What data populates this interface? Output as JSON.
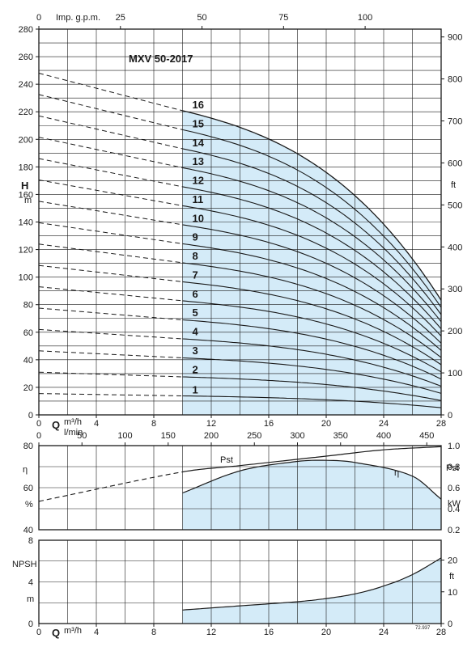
{
  "colors": {
    "fill": "#d4ebf8",
    "curve": "#1a1a1a",
    "grid": "#1a1a1a"
  },
  "labels": {
    "title": "MXV 50-2017",
    "top_axis": "Imp. g.p.m.",
    "H": "H",
    "H_unit": "m",
    "ft": "ft",
    "Q": "Q",
    "Q_unit": "m³/h",
    "lmin": "l/min",
    "eta": "η",
    "pct": "%",
    "Pst": "Pst",
    "kW": "kW",
    "NPSH": "NPSH",
    "npsh_m": "m",
    "npsh_ft": "ft",
    "code": "72.937"
  },
  "chart_data": [
    {
      "type": "line",
      "title": "MXV 50-2017",
      "xlabel": "Q m³/h",
      "ylabel": "H m",
      "xlim": [
        0,
        28
      ],
      "ylim": [
        0,
        280
      ],
      "x_ticks": [
        "0",
        "4",
        "8",
        "12",
        "16",
        "20",
        "24",
        "28"
      ],
      "y_ticks": [
        "0",
        "20",
        "40",
        "60",
        "80",
        "100",
        "120",
        "140",
        "160",
        "180",
        "200",
        "220",
        "240",
        "260",
        "280"
      ],
      "top_axis": {
        "label": "Imp. g.p.m.",
        "ticks": [
          "0",
          "25",
          "50",
          "75",
          "100"
        ],
        "values": [
          0,
          25,
          50,
          75,
          100
        ]
      },
      "right_axis": {
        "label": "ft",
        "ticks": [
          "0",
          "100",
          "200",
          "300",
          "400",
          "500",
          "600",
          "700",
          "800",
          "900"
        ]
      },
      "operating_range": [
        10,
        28
      ],
      "note": "dashed segments for Q < 10 m³/h",
      "stages": [
        "1",
        "2",
        "3",
        "4",
        "5",
        "6",
        "7",
        "8",
        "9",
        "10",
        "11",
        "12",
        "13",
        "14",
        "15",
        "16"
      ],
      "series_points": {
        "x": [
          0,
          10,
          20,
          28
        ],
        "per_stage_head_m": [
          15.5,
          13.8,
          11.0,
          5.2
        ]
      },
      "series": [
        {
          "name": "1",
          "points": [
            [
              0,
              15.5
            ],
            [
              10,
              13.8
            ],
            [
              20,
              11.0
            ],
            [
              28,
              5.2
            ]
          ]
        },
        {
          "name": "2",
          "points": [
            [
              0,
              31.0
            ],
            [
              10,
              27.6
            ],
            [
              20,
              22.0
            ],
            [
              28,
              10.4
            ]
          ]
        },
        {
          "name": "3",
          "points": [
            [
              0,
              46.5
            ],
            [
              10,
              41.4
            ],
            [
              20,
              33.0
            ],
            [
              28,
              15.6
            ]
          ]
        },
        {
          "name": "4",
          "points": [
            [
              0,
              62.0
            ],
            [
              10,
              55.2
            ],
            [
              20,
              44.0
            ],
            [
              28,
              20.8
            ]
          ]
        },
        {
          "name": "5",
          "points": [
            [
              0,
              77.5
            ],
            [
              10,
              69.0
            ],
            [
              20,
              55.0
            ],
            [
              28,
              26.0
            ]
          ]
        },
        {
          "name": "6",
          "points": [
            [
              0,
              93.0
            ],
            [
              10,
              82.8
            ],
            [
              20,
              66.0
            ],
            [
              28,
              31.2
            ]
          ]
        },
        {
          "name": "7",
          "points": [
            [
              0,
              108.5
            ],
            [
              10,
              96.6
            ],
            [
              20,
              77.0
            ],
            [
              28,
              36.4
            ]
          ]
        },
        {
          "name": "8",
          "points": [
            [
              0,
              124.0
            ],
            [
              10,
              110.4
            ],
            [
              20,
              88.0
            ],
            [
              28,
              41.6
            ]
          ]
        },
        {
          "name": "9",
          "points": [
            [
              0,
              139.5
            ],
            [
              10,
              124.2
            ],
            [
              20,
              99.0
            ],
            [
              28,
              46.8
            ]
          ]
        },
        {
          "name": "10",
          "points": [
            [
              0,
              155.0
            ],
            [
              10,
              138.0
            ],
            [
              20,
              110.0
            ],
            [
              28,
              52.0
            ]
          ]
        },
        {
          "name": "11",
          "points": [
            [
              0,
              170.5
            ],
            [
              10,
              151.8
            ],
            [
              20,
              121.0
            ],
            [
              28,
              57.2
            ]
          ]
        },
        {
          "name": "12",
          "points": [
            [
              0,
              186.0
            ],
            [
              10,
              165.6
            ],
            [
              20,
              132.0
            ],
            [
              28,
              62.4
            ]
          ]
        },
        {
          "name": "13",
          "points": [
            [
              0,
              201.5
            ],
            [
              10,
              179.4
            ],
            [
              20,
              143.0
            ],
            [
              28,
              67.6
            ]
          ]
        },
        {
          "name": "14",
          "points": [
            [
              0,
              217.0
            ],
            [
              10,
              193.2
            ],
            [
              20,
              154.0
            ],
            [
              28,
              72.8
            ]
          ]
        },
        {
          "name": "15",
          "points": [
            [
              0,
              232.5
            ],
            [
              10,
              207.0
            ],
            [
              20,
              165.0
            ],
            [
              28,
              78.0
            ]
          ]
        },
        {
          "name": "16",
          "points": [
            [
              0,
              248.0
            ],
            [
              10,
              220.8
            ],
            [
              20,
              176.0
            ],
            [
              28,
              83.2
            ]
          ]
        }
      ]
    },
    {
      "type": "line",
      "xlabel": "l/min",
      "ylabel": "η %",
      "x_top_axis_ticks": [
        "0",
        "50",
        "100",
        "150",
        "200",
        "250",
        "300",
        "350",
        "400",
        "450"
      ],
      "ylim": [
        40,
        80
      ],
      "y_ticks": [
        "40",
        "60",
        "80"
      ],
      "right_axis": {
        "label": "Pst kW",
        "ticks": [
          "0.2",
          "0.4",
          "0.6",
          "0.8",
          "1.0"
        ]
      },
      "series": [
        {
          "name": "η",
          "x": [
            10,
            14,
            18,
            20,
            22,
            26,
            28
          ],
          "y": [
            57.5,
            68,
            72.5,
            73,
            72,
            65.5,
            54.5
          ]
        },
        {
          "name": "Pst",
          "x": [
            0,
            10,
            14,
            20,
            24,
            28
          ],
          "y": [
            53.5,
            67.5,
            70.5,
            75,
            78,
            79.5
          ]
        }
      ]
    },
    {
      "type": "area",
      "xlabel": "Q m³/h",
      "ylabel": "NPSH m",
      "xlim": [
        0,
        28
      ],
      "ylim": [
        0,
        8
      ],
      "x_ticks": [
        "0",
        "4",
        "8",
        "12",
        "16",
        "20",
        "24",
        "28"
      ],
      "y_ticks": [
        "0",
        "4",
        "8"
      ],
      "right_axis": {
        "label": "ft",
        "ticks": [
          "0",
          "10",
          "20"
        ]
      },
      "series": [
        {
          "name": "NPSH",
          "x": [
            10,
            14,
            18,
            20,
            22,
            24,
            26,
            28
          ],
          "y": [
            1.3,
            1.7,
            2.1,
            2.4,
            2.85,
            3.6,
            4.7,
            6.3
          ]
        }
      ]
    }
  ]
}
